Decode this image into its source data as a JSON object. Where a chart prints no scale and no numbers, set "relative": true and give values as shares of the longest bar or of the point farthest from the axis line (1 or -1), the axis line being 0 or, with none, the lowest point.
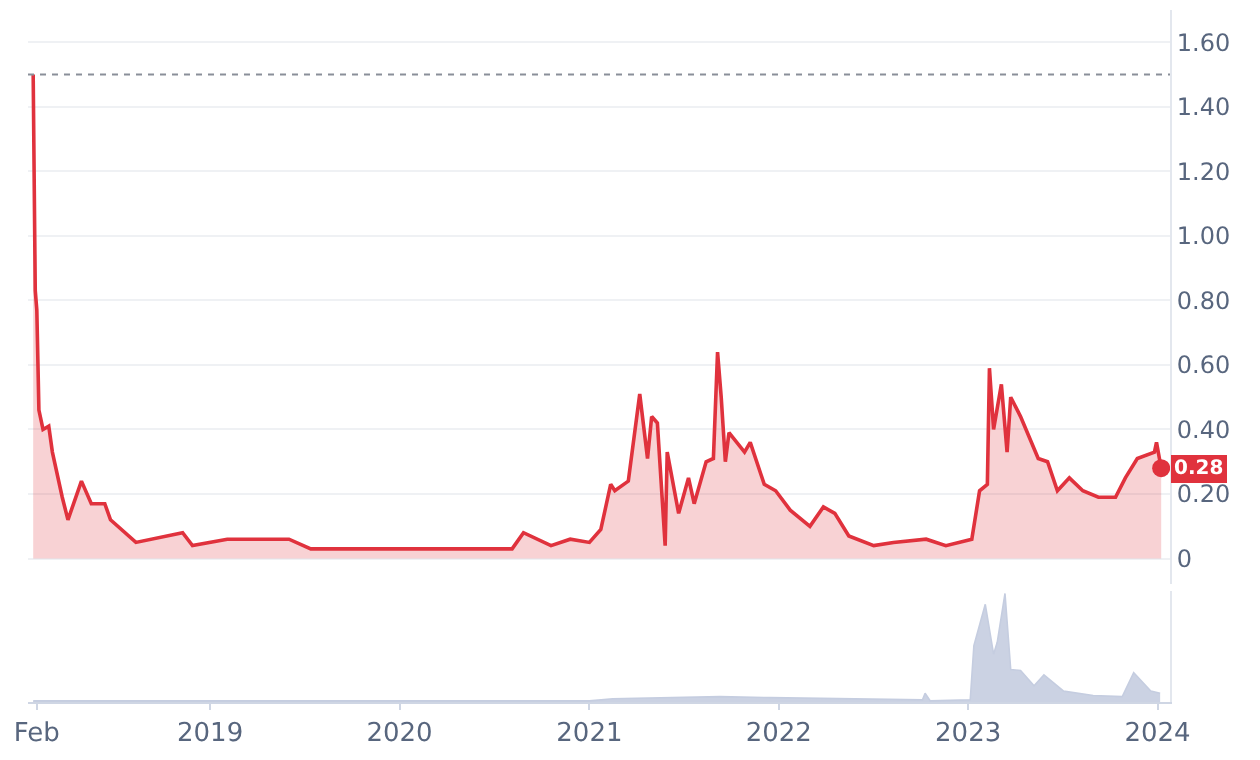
{
  "chart_data": [
    {
      "type": "area",
      "xlim": [
        "2018-01-15",
        "2024-01-25"
      ],
      "ylim": [
        -0.08,
        1.7
      ],
      "yticks": [
        0,
        {
          "value": 0.2,
          "label": "0.20"
        },
        {
          "value": 0.4,
          "label": "0.40"
        },
        {
          "value": 0.6,
          "label": "0.60"
        },
        {
          "value": 0.8,
          "label": "0.80"
        },
        {
          "value": 1.0,
          "label": "1.00"
        },
        {
          "value": 1.2,
          "label": "1.20"
        },
        {
          "value": 1.4,
          "label": "1.40"
        },
        {
          "value": 1.6,
          "label": "1.60"
        }
      ],
      "grid": "y",
      "tick_labels": "y",
      "ref_lines": [
        {
          "axis": "y",
          "value": 1.5,
          "color": "#8a8f99",
          "line_style": "dotted"
        }
      ],
      "annotations": [
        {
          "text": "0.28",
          "x": "2024-01-08",
          "y": 0.28
        }
      ],
      "series": [
        {
          "color": "#e0323d",
          "x": [
            "2018-01-25",
            "2018-01-29",
            "2018-02-01",
            "2018-02-05",
            "2018-02-13",
            "2018-02-24",
            "2018-03-03",
            "2018-03-22",
            "2018-04-02",
            "2018-04-28",
            "2018-05-17",
            "2018-06-12",
            "2018-06-23",
            "2018-08-11",
            "2018-11-09",
            "2018-11-28",
            "2019-02-03",
            "2019-04-08",
            "2019-06-02",
            "2019-07-14",
            "2019-10-12",
            "2020-03-08",
            "2020-06-14",
            "2020-08-05",
            "2020-08-27",
            "2020-10-19",
            "2020-11-25",
            "2021-01-01",
            "2021-01-23",
            "2021-02-11",
            "2021-02-19",
            "2021-03-17",
            "2021-04-08",
            "2021-04-23",
            "2021-05-01",
            "2021-05-12",
            "2021-05-27",
            "2021-05-31",
            "2021-06-22",
            "2021-07-11",
            "2021-07-22",
            "2021-08-14",
            "2021-08-28",
            "2021-09-05",
            "2021-09-12",
            "2021-09-20",
            "2021-09-27",
            "2021-10-27",
            "2021-11-07",
            "2021-12-04",
            "2021-12-26",
            "2022-01-23",
            "2022-03-02",
            "2022-03-28",
            "2022-04-19",
            "2022-05-16",
            "2022-07-03",
            "2022-08-10",
            "2022-10-12",
            "2022-11-19",
            "2023-01-08",
            "2023-01-23",
            "2023-02-07",
            "2023-02-11",
            "2023-02-19",
            "2023-03-06",
            "2023-03-17",
            "2023-03-24",
            "2023-04-12",
            "2023-05-16",
            "2023-06-03",
            "2023-06-22",
            "2023-07-15",
            "2023-08-10",
            "2023-09-09",
            "2023-10-12",
            "2023-10-31",
            "2023-11-23",
            "2023-12-26",
            "2023-12-30",
            "2024-01-08"
          ],
          "values": [
            1.5,
            0.83,
            0.77,
            0.46,
            0.4,
            0.41,
            0.33,
            0.19,
            0.12,
            0.24,
            0.17,
            0.17,
            0.12,
            0.05,
            0.08,
            0.04,
            0.06,
            0.06,
            0.06,
            0.03,
            0.03,
            0.03,
            0.03,
            0.03,
            0.08,
            0.04,
            0.06,
            0.05,
            0.09,
            0.23,
            0.21,
            0.24,
            0.51,
            0.31,
            0.44,
            0.42,
            0.04,
            0.33,
            0.14,
            0.25,
            0.17,
            0.3,
            0.31,
            0.64,
            0.5,
            0.3,
            0.39,
            0.33,
            0.36,
            0.23,
            0.21,
            0.15,
            0.1,
            0.16,
            0.14,
            0.07,
            0.04,
            0.05,
            0.06,
            0.04,
            0.06,
            0.21,
            0.23,
            0.59,
            0.4,
            0.54,
            0.33,
            0.5,
            0.44,
            0.31,
            0.3,
            0.21,
            0.25,
            0.21,
            0.19,
            0.19,
            0.25,
            0.31,
            0.33,
            0.36,
            0.28
          ]
        }
      ]
    },
    {
      "type": "area",
      "relative": true,
      "xlim": [
        "2018-01-15",
        "2024-01-25"
      ],
      "xticks": [
        {
          "value": "2018-02-01",
          "label": "Feb"
        },
        {
          "value": "2019-01-01",
          "label": "2019"
        },
        {
          "value": "2020-01-01",
          "label": "2020"
        },
        {
          "value": "2021-01-01",
          "label": "2021"
        },
        {
          "value": "2022-01-01",
          "label": "2022"
        },
        {
          "value": "2023-01-01",
          "label": "2023"
        },
        {
          "value": "2024-01-01",
          "label": "2024"
        }
      ],
      "tick_labels": "x",
      "series": [
        {
          "color": "#c5cde0",
          "x": [
            "2018-01-25",
            "2021-01-01",
            "2021-02-15",
            "2021-09-10",
            "2021-12-15",
            "2022-10-05",
            "2022-10-10",
            "2022-10-20",
            "2023-01-05",
            "2023-01-12",
            "2023-02-03",
            "2023-02-19",
            "2023-02-26",
            "2023-03-13",
            "2023-03-24",
            "2023-04-12",
            "2023-05-08",
            "2023-05-27",
            "2023-07-04",
            "2023-08-30",
            "2023-10-25",
            "2023-11-16",
            "2023-12-19",
            "2024-01-06"
          ],
          "values": [
            0.01,
            0.01,
            0.03,
            0.05,
            0.04,
            0.02,
            0.08,
            0.01,
            0.02,
            0.52,
            0.9,
            0.44,
            0.55,
            1.0,
            0.3,
            0.29,
            0.15,
            0.25,
            0.1,
            0.06,
            0.05,
            0.27,
            0.1,
            0.08
          ]
        }
      ]
    }
  ]
}
